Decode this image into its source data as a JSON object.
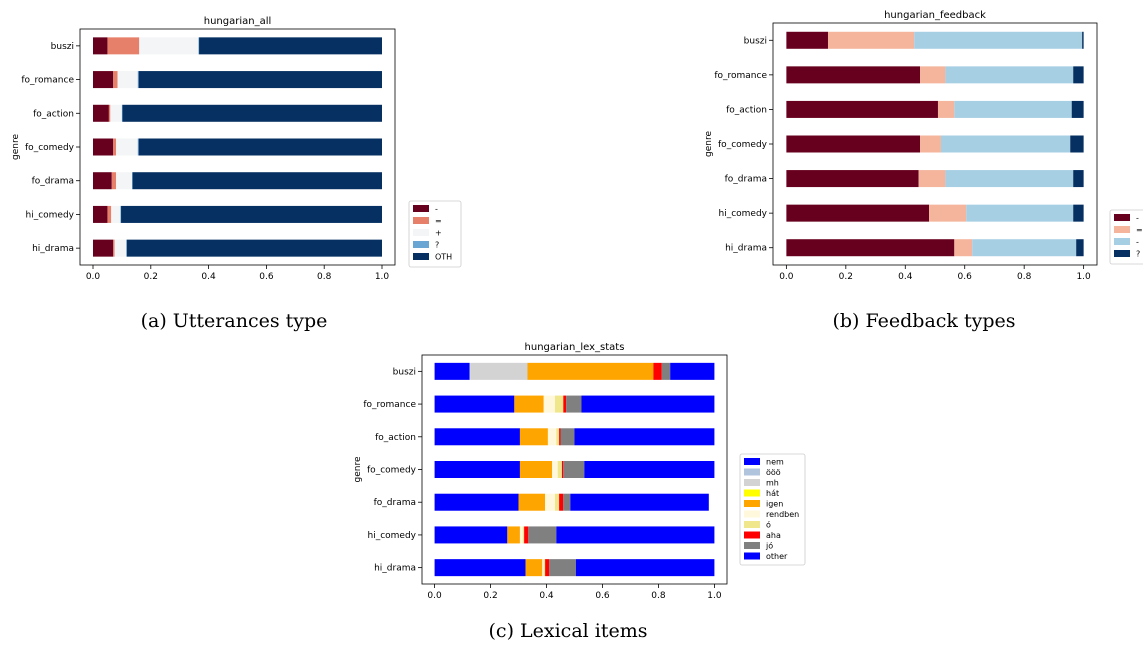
{
  "colors": {
    "minus": "#67001f",
    "equal_all": "#e6806a",
    "equal_fb": "#f4b59c",
    "plus": "#f3f5f6",
    "plus_fb": "#a7cfe4",
    "question": "#6aa6d3",
    "oth": "#053061",
    "nem": "#0000ff",
    "ooo": "#b0c4de",
    "mh": "#d3d3d3",
    "hat": "#ffff00",
    "igen": "#ffa500",
    "rendben": "#fff8dc",
    "o": "#f0e68c",
    "aha": "#ff0000",
    "jo": "#808080",
    "other": "#0000ff"
  },
  "captions": {
    "a": "(a) Utterances type",
    "b": "(b) Feedback types",
    "c": "(c) Lexical items"
  },
  "chart_data": [
    {
      "id": "a",
      "type": "bar",
      "orientation": "horizontal",
      "stacked": true,
      "title": "hungarian_all",
      "ylabel": "genre",
      "xlabel": "",
      "xlim": [
        0,
        1
      ],
      "xticks": [
        "0.0",
        "0.2",
        "0.4",
        "0.6",
        "0.8",
        "1.0"
      ],
      "categories": [
        "buszi",
        "fo_romance",
        "fo_action",
        "fo_comedy",
        "fo_drama",
        "hi_comedy",
        "hi_drama"
      ],
      "legend_position": "right",
      "series": [
        {
          "name": "-",
          "color_key": "minus",
          "values": [
            0.05,
            0.07,
            0.055,
            0.07,
            0.065,
            0.05,
            0.07
          ]
        },
        {
          "name": "=",
          "color_key": "equal_all",
          "values": [
            0.11,
            0.015,
            0.005,
            0.01,
            0.015,
            0.013,
            0.005
          ]
        },
        {
          "name": "+",
          "color_key": "plus",
          "values": [
            0.205,
            0.07,
            0.04,
            0.075,
            0.055,
            0.032,
            0.04
          ]
        },
        {
          "name": "?",
          "color_key": "question",
          "values": [
            0.002,
            0.003,
            0.002,
            0.003,
            0.002,
            0.002,
            0.002
          ]
        },
        {
          "name": "OTH",
          "color_key": "oth",
          "values": [
            0.633,
            0.842,
            0.898,
            0.842,
            0.863,
            0.903,
            0.883
          ]
        }
      ]
    },
    {
      "id": "b",
      "type": "bar",
      "orientation": "horizontal",
      "stacked": true,
      "title": "hungarian_feedback",
      "ylabel": "genre",
      "xlabel": "",
      "xlim": [
        0,
        1
      ],
      "xticks": [
        "0.0",
        "0.2",
        "0.4",
        "0.6",
        "0.8",
        "1.0"
      ],
      "categories": [
        "buszi",
        "fo_romance",
        "fo_action",
        "fo_comedy",
        "fo_drama",
        "hi_comedy",
        "hi_drama"
      ],
      "legend_position": "right",
      "series": [
        {
          "name": "-",
          "color_key": "minus",
          "values": [
            0.14,
            0.45,
            0.51,
            0.45,
            0.445,
            0.48,
            0.565
          ]
        },
        {
          "name": "=",
          "color_key": "equal_fb",
          "values": [
            0.29,
            0.085,
            0.055,
            0.07,
            0.09,
            0.125,
            0.06
          ]
        },
        {
          "name": "-",
          "color_key": "plus_fb",
          "values": [
            0.565,
            0.43,
            0.395,
            0.435,
            0.43,
            0.36,
            0.35
          ]
        },
        {
          "name": "?",
          "color_key": "oth",
          "values": [
            0.005,
            0.035,
            0.04,
            0.045,
            0.035,
            0.035,
            0.025
          ]
        }
      ]
    },
    {
      "id": "c",
      "type": "bar",
      "orientation": "horizontal",
      "stacked": true,
      "title": "hungarian_lex_stats",
      "ylabel": "genre",
      "xlabel": "",
      "xlim": [
        0,
        1
      ],
      "xticks": [
        "0.0",
        "0.2",
        "0.4",
        "0.6",
        "0.8",
        "1.0"
      ],
      "categories": [
        "buszi",
        "fo_romance",
        "fo_action",
        "fo_comedy",
        "fo_drama",
        "hi_comedy",
        "hi_drama"
      ],
      "legend_position": "right",
      "series": [
        {
          "name": "nem",
          "color_key": "nem",
          "values": [
            0.125,
            0.285,
            0.305,
            0.305,
            0.3,
            0.26,
            0.325
          ]
        },
        {
          "name": "ööö",
          "color_key": "ooo",
          "values": [
            0.002,
            0.0,
            0.0,
            0.0,
            0.0,
            0.0,
            0.0
          ]
        },
        {
          "name": "mh",
          "color_key": "mh",
          "values": [
            0.205,
            0.0,
            0.0,
            0.0,
            0.0,
            0.0,
            0.0
          ]
        },
        {
          "name": "hát",
          "color_key": "hat",
          "values": [
            0.0,
            0.0,
            0.0,
            0.0,
            0.0,
            0.0,
            0.0
          ]
        },
        {
          "name": "igen",
          "color_key": "igen",
          "values": [
            0.45,
            0.105,
            0.1,
            0.115,
            0.095,
            0.045,
            0.06
          ]
        },
        {
          "name": "rendben",
          "color_key": "rendben",
          "values": [
            0.0,
            0.04,
            0.03,
            0.02,
            0.035,
            0.01,
            0.005
          ]
        },
        {
          "name": "ó",
          "color_key": "o",
          "values": [
            0.0,
            0.03,
            0.01,
            0.015,
            0.015,
            0.005,
            0.005
          ]
        },
        {
          "name": "aha",
          "color_key": "aha",
          "values": [
            0.03,
            0.01,
            0.005,
            0.005,
            0.015,
            0.015,
            0.015
          ]
        },
        {
          "name": "jó",
          "color_key": "jo",
          "values": [
            0.03,
            0.055,
            0.05,
            0.075,
            0.025,
            0.1,
            0.095
          ]
        },
        {
          "name": "other",
          "color_key": "other",
          "values": [
            0.158,
            0.475,
            0.5,
            0.465,
            0.495,
            0.565,
            0.495
          ]
        }
      ]
    }
  ]
}
